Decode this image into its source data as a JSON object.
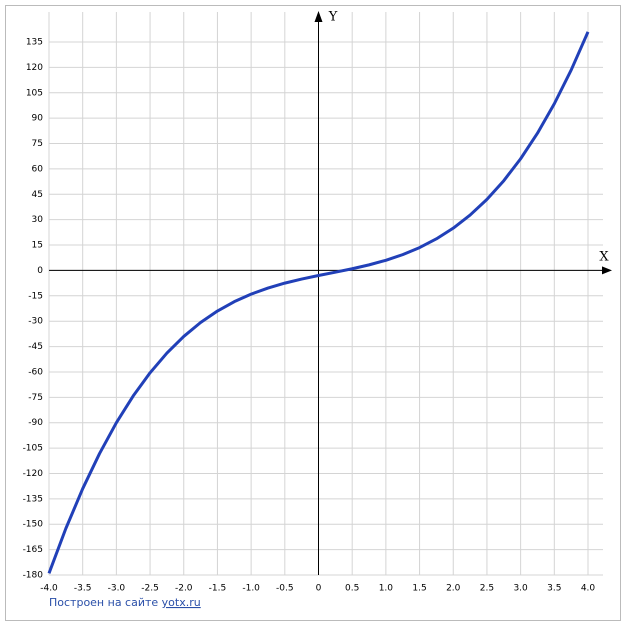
{
  "chart_data": {
    "type": "line",
    "x_label": "X",
    "y_label": "Y",
    "x": [
      -4,
      -3.75,
      -3.5,
      -3.25,
      -3,
      -2.75,
      -2.5,
      -2.25,
      -2,
      -1.75,
      -1.5,
      -1.25,
      -1,
      -0.75,
      -0.5,
      -0.25,
      0,
      0.25,
      0.5,
      0.75,
      1,
      1.25,
      1.5,
      1.75,
      2,
      2.25,
      2.5,
      2.75,
      3,
      3.25,
      3.5,
      3.75,
      4
    ],
    "values": [
      -179,
      -152.53,
      -129,
      -108.22,
      -90,
      -74.16,
      -60.5,
      -48.84,
      -39,
      -30.78,
      -24,
      -18.47,
      -14,
      -10.41,
      -7.5,
      -5.09,
      -3,
      -1.03,
      1,
      3.28,
      6,
      9.34,
      13.5,
      18.66,
      25,
      32.72,
      42,
      53.03,
      66,
      81.09,
      98.5,
      118.41,
      141
    ],
    "color": "#2140b8",
    "xlim": [
      -4,
      4
    ],
    "ylim": [
      -180,
      135
    ],
    "xticks": [
      {
        "value": -4,
        "label": "-4.0"
      },
      -3.5,
      {
        "value": -3,
        "label": "-3.0"
      },
      -2.5,
      {
        "value": -2,
        "label": "-2.0"
      },
      -1.5,
      {
        "value": -1,
        "label": "-1.0"
      },
      -0.5,
      0,
      0.5,
      {
        "value": 1,
        "label": "1.0"
      },
      1.5,
      {
        "value": 2,
        "label": "2.0"
      },
      2.5,
      {
        "value": 3,
        "label": "3.0"
      },
      3.5,
      {
        "value": 4,
        "label": "4.0"
      }
    ],
    "yticks": [
      -180,
      -165,
      -150,
      -135,
      -120,
      -105,
      -90,
      -75,
      -60,
      -45,
      -30,
      -15,
      0,
      15,
      30,
      45,
      60,
      75,
      90,
      105,
      120,
      135
    ],
    "grid": true,
    "footer": {
      "text": "Построен на сайте",
      "link": "yotx.ru"
    }
  }
}
